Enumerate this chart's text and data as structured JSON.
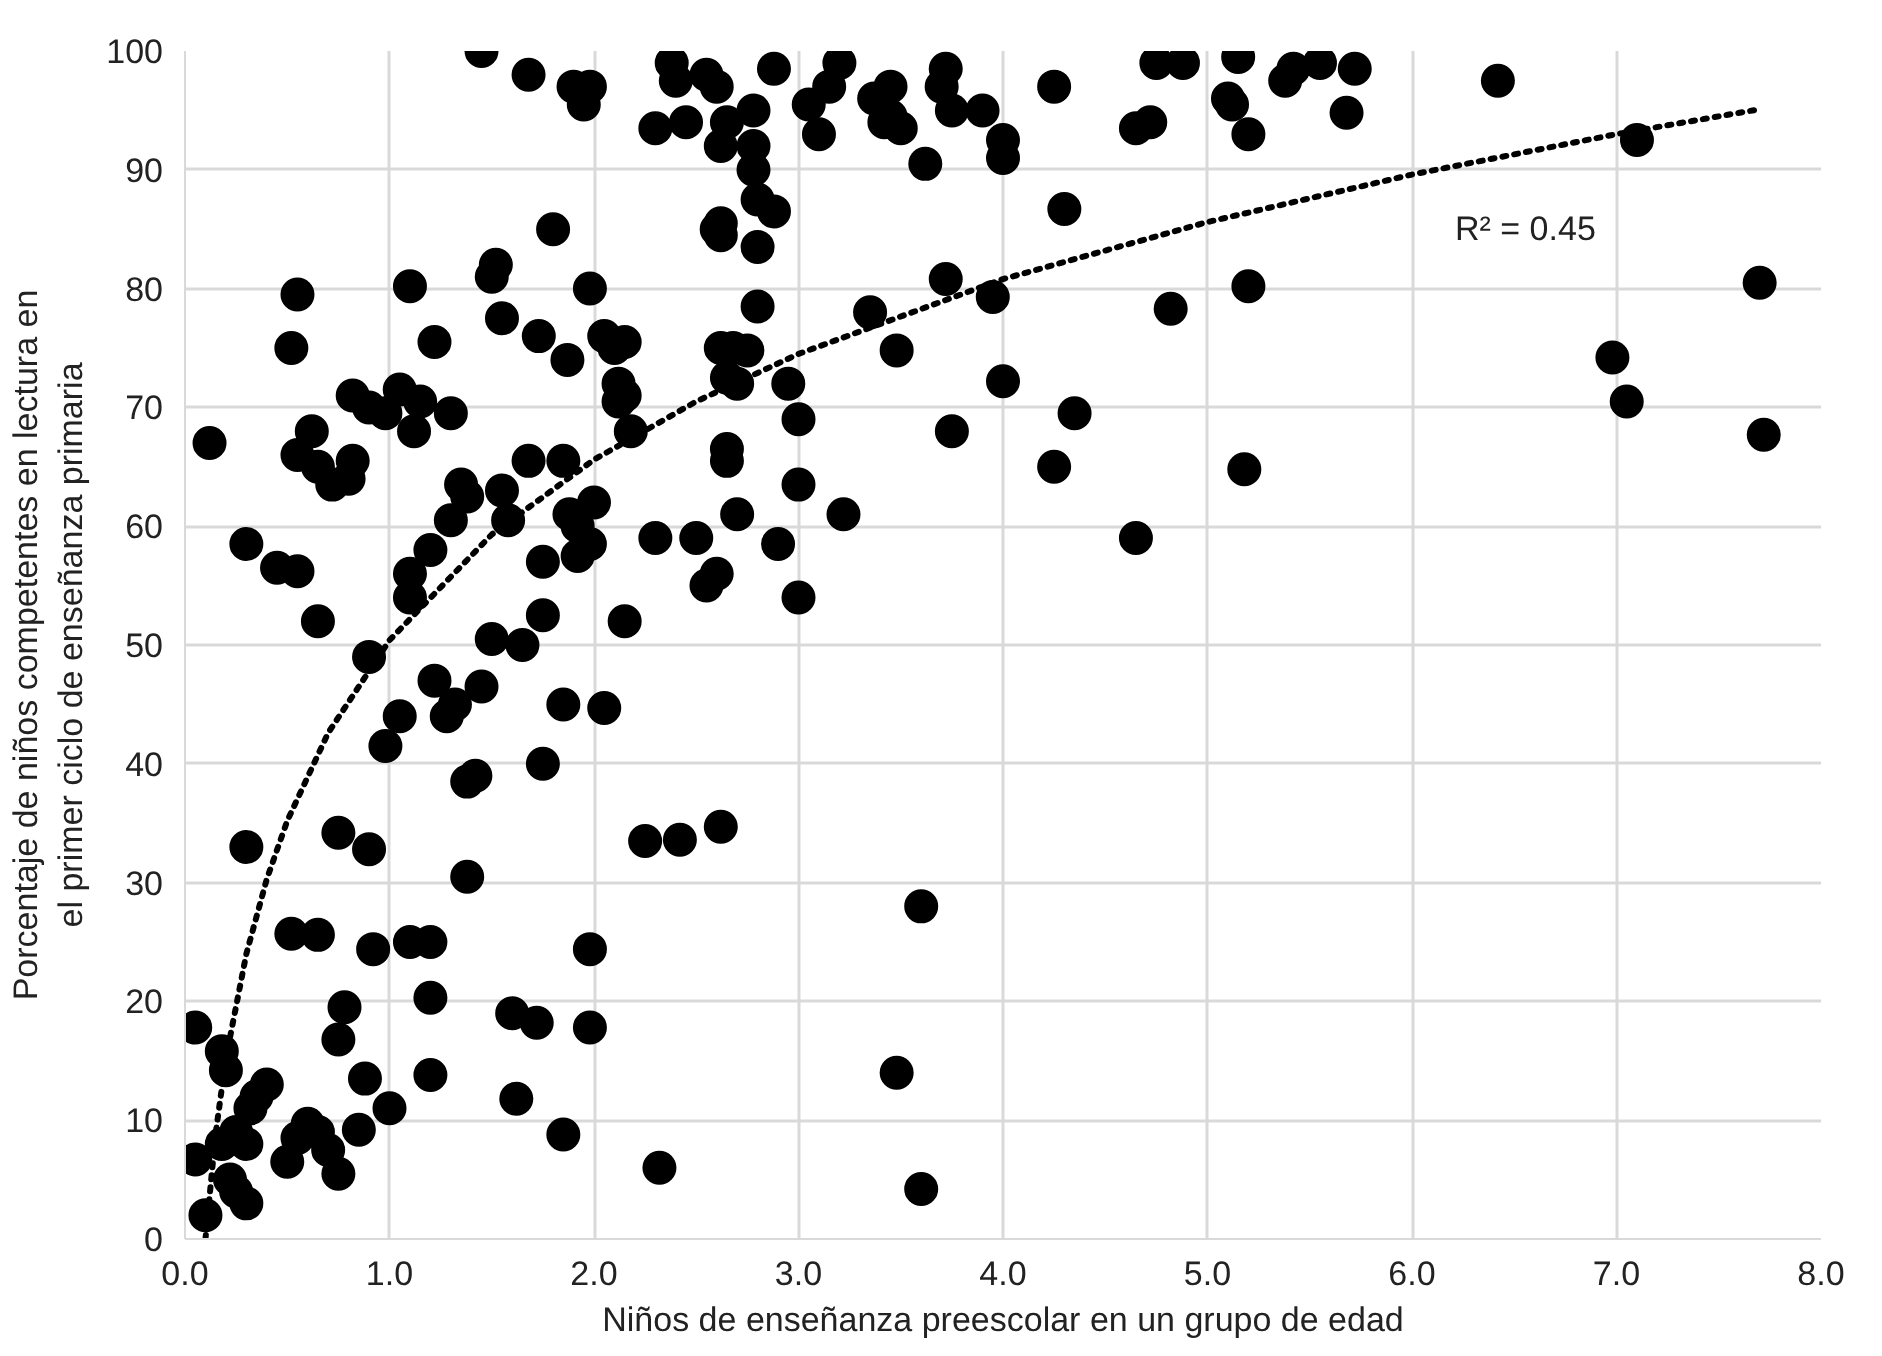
{
  "chart_data": {
    "type": "scatter",
    "xlabel": "Niños de enseñanza preescolar en un grupo de edad",
    "ylabel": "Porcentaje de niños competentes en lectura en el primer ciclo de enseñanza primaria",
    "xlim": [
      0,
      8
    ],
    "ylim": [
      0,
      100
    ],
    "xticks": [
      {
        "value": 0,
        "label": "0.0"
      },
      {
        "value": 1,
        "label": "1.0"
      },
      {
        "value": 2,
        "label": "2.0"
      },
      {
        "value": 3,
        "label": "3.0"
      },
      {
        "value": 4,
        "label": "4.0"
      },
      {
        "value": 5,
        "label": "5.0"
      },
      {
        "value": 6,
        "label": "6.0"
      },
      {
        "value": 7,
        "label": "7.0"
      },
      {
        "value": 8,
        "label": "8.0"
      }
    ],
    "yticks": [
      0,
      10,
      20,
      30,
      40,
      50,
      60,
      70,
      80,
      90,
      100
    ],
    "grid": true,
    "annotations": [
      "R² = 0.45"
    ],
    "series": [
      {
        "marker": "circle",
        "color": "#000000",
        "x": [
          1.45,
          1.68,
          1.9,
          1.95,
          1.98,
          2.3,
          2.38,
          2.4,
          2.45,
          2.55,
          2.6,
          2.62,
          2.65,
          2.78,
          2.78,
          2.78,
          2.8,
          2.8,
          2.88,
          2.88,
          3.05,
          3.1,
          3.15,
          3.2,
          3.37,
          3.42,
          3.45,
          3.45,
          3.5,
          3.62,
          3.7,
          3.72,
          3.75,
          3.9,
          4.0,
          4.0,
          4.25,
          4.3,
          4.65,
          4.72,
          4.75,
          4.88,
          5.1,
          5.12,
          5.15,
          5.2,
          5.38,
          5.42,
          5.55,
          5.68,
          5.72,
          6.42,
          7.1,
          1.52,
          1.5,
          1.8,
          1.22,
          1.1,
          1.55,
          1.73,
          1.87,
          1.98,
          2.05,
          2.1,
          2.15,
          2.12,
          2.15,
          2.18,
          2.12,
          2.62,
          2.68,
          2.65,
          2.7,
          2.75,
          2.8,
          2.95,
          3.35,
          3.48,
          3.72,
          3.75,
          3.95,
          4.0,
          4.82,
          5.2,
          6.98,
          7.05,
          7.7,
          7.72,
          2.62,
          2.62,
          2.6,
          0.12,
          0.55,
          0.62,
          0.65,
          0.72,
          0.82,
          0.82,
          0.8,
          0.9,
          0.98,
          1.05,
          1.12,
          1.15,
          1.3,
          1.35,
          1.38,
          1.3,
          1.55,
          1.58,
          1.68,
          1.85,
          1.88,
          1.92,
          1.92,
          1.75,
          1.75,
          1.98,
          2.0,
          2.15,
          2.3,
          2.5,
          2.55,
          2.6,
          2.65,
          2.65,
          2.7,
          2.9,
          3.0,
          3.0,
          3.0,
          3.22,
          4.25,
          4.35,
          4.65,
          5.18,
          0.52,
          0.55,
          0.3,
          0.45,
          0.55,
          0.65,
          1.1,
          1.1,
          1.2,
          1.5,
          1.45,
          1.22,
          1.28,
          1.32,
          1.38,
          1.42,
          1.38,
          0.9,
          0.98,
          1.05,
          1.65,
          1.75,
          1.85,
          2.05,
          2.25,
          2.42,
          2.62,
          0.3,
          0.75,
          0.9,
          0.52,
          0.65,
          0.92,
          1.1,
          1.2,
          1.98,
          1.2,
          1.2,
          1.6,
          1.72,
          1.98,
          1.62,
          1.85,
          2.32,
          3.6,
          3.48,
          3.6,
          0.78,
          0.75,
          0.88,
          1.0,
          0.85,
          0.05,
          0.18,
          0.2,
          0.05,
          0.1,
          0.18,
          0.25,
          0.3,
          0.32,
          0.35,
          0.4,
          0.25,
          0.3,
          0.22,
          0.5,
          0.55,
          0.6,
          0.65,
          0.7,
          0.75
        ],
        "values": [
          100,
          98,
          97,
          95.5,
          97,
          93.5,
          99,
          97.5,
          94,
          98,
          97,
          92,
          94,
          92,
          95,
          90,
          87.5,
          83.5,
          86.5,
          98.5,
          95.5,
          93,
          97,
          99,
          96,
          94,
          97,
          94.5,
          93.5,
          90.5,
          97,
          98.5,
          95,
          95,
          91,
          92.5,
          97,
          86.7,
          93.5,
          94,
          99,
          99,
          96,
          95.5,
          99.5,
          93,
          97.5,
          98.5,
          99,
          94.8,
          98.5,
          97.5,
          92.5,
          82,
          81,
          85,
          75.5,
          80.2,
          77.5,
          76,
          74,
          80,
          76,
          75,
          75.5,
          72,
          71,
          68,
          70.5,
          75,
          75,
          72.5,
          72,
          74.8,
          78.5,
          72,
          78,
          74.8,
          80.8,
          68,
          79.3,
          72.2,
          78.3,
          80.2,
          74.2,
          70.5,
          80.5,
          67.7,
          85.5,
          84.5,
          85,
          67,
          66,
          68,
          65,
          63.5,
          65.5,
          71,
          64,
          70,
          69.5,
          71.5,
          68,
          70.5,
          69.5,
          63.5,
          62.5,
          60.5,
          63,
          60.5,
          65.5,
          65.5,
          61,
          60,
          57.5,
          57,
          52.5,
          58.5,
          62,
          52,
          59,
          59,
          55,
          56,
          66.5,
          65.5,
          61,
          58.5,
          69,
          63.5,
          54,
          61,
          65,
          69.5,
          59,
          64.8,
          75,
          79.5,
          58.5,
          56.5,
          56.2,
          52,
          56,
          54,
          58,
          50.5,
          46.5,
          47,
          44,
          45,
          38.5,
          39,
          30.5,
          49,
          41.5,
          44,
          50,
          40,
          45,
          44.7,
          33.5,
          33.6,
          34.7,
          33,
          34.2,
          32.8,
          25.7,
          25.6,
          24.4,
          25,
          25,
          24.4,
          20.3,
          13.8,
          19,
          18.2,
          17.8,
          11.8,
          8.8,
          6,
          28,
          14,
          4.2,
          19.5,
          16.8,
          13.5,
          11,
          9.2,
          17.8,
          15.8,
          14.2,
          6.7,
          2,
          8,
          9,
          8,
          11,
          12,
          13,
          4,
          3,
          5,
          6.5,
          8.5,
          9.7,
          9,
          7.5,
          5.5
        ]
      },
      {
        "type": "line",
        "marker": "none",
        "line_style": "dotted",
        "color": "#000000",
        "x": [
          0.1,
          0.15,
          0.2,
          0.3,
          0.4,
          0.5,
          0.7,
          1,
          1.5,
          2,
          2.5,
          3,
          4,
          5,
          6,
          7,
          7.7
        ],
        "values": [
          0,
          8.9,
          15.2,
          24.0,
          30.3,
          35.2,
          42.6,
          50.4,
          59.3,
          65.6,
          70.5,
          74.5,
          80.8,
          85.6,
          89.6,
          93.0,
          95.1
        ]
      }
    ]
  }
}
